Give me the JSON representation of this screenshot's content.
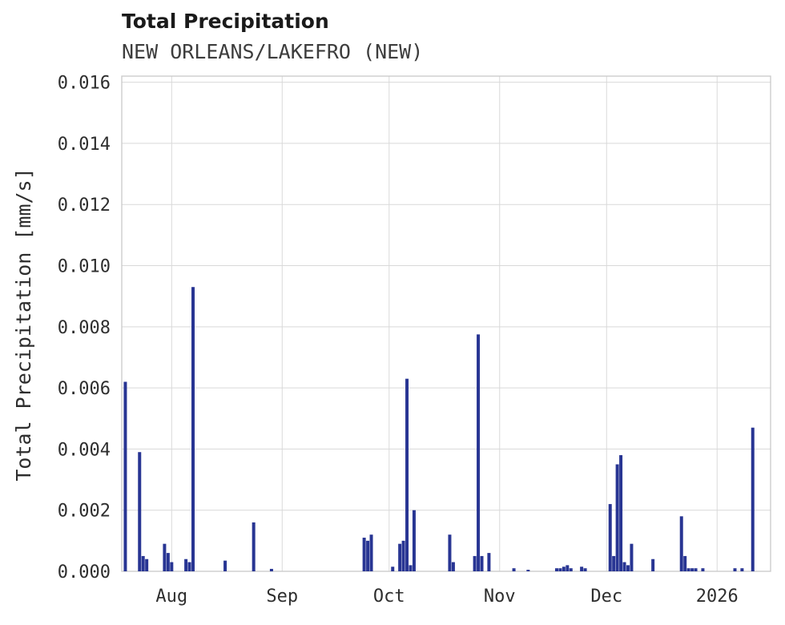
{
  "header": {
    "title": "Total Precipitation",
    "subtitle": "NEW ORLEANS/LAKEFRO (NEW)"
  },
  "chart_data": {
    "type": "bar",
    "title": "Total Precipitation",
    "subtitle": "NEW ORLEANS/LAKEFRO (NEW)",
    "xlabel": "",
    "ylabel": "Total Precipitation [mm/s]",
    "ylim": [
      0,
      0.0162
    ],
    "yticks": [
      0.0,
      0.002,
      0.004,
      0.006,
      0.008,
      0.01,
      0.012,
      0.014,
      0.016
    ],
    "ytick_labels": [
      "0.000",
      "0.002",
      "0.004",
      "0.006",
      "0.008",
      "0.010",
      "0.012",
      "0.014",
      "0.016"
    ],
    "x_range": [
      "2025-07-18",
      "2026-01-16"
    ],
    "xticks": [
      "2025-08-01",
      "2025-09-01",
      "2025-10-01",
      "2025-11-01",
      "2025-12-01",
      "2026-01-01"
    ],
    "xtick_labels": [
      "Aug",
      "Sep",
      "Oct",
      "Nov",
      "Dec",
      "2026"
    ],
    "grid": true,
    "legend": "none",
    "bar_color": "#283593",
    "grid_color": "#d9d9d9",
    "border_color": "#c9c9c9",
    "points": [
      {
        "date": "2025-07-19",
        "value": 0.0062
      },
      {
        "date": "2025-07-23",
        "value": 0.0039
      },
      {
        "date": "2025-07-24",
        "value": 0.0005
      },
      {
        "date": "2025-07-25",
        "value": 0.0004
      },
      {
        "date": "2025-07-30",
        "value": 0.0009
      },
      {
        "date": "2025-07-31",
        "value": 0.0006
      },
      {
        "date": "2025-08-01",
        "value": 0.0003
      },
      {
        "date": "2025-08-05",
        "value": 0.0004
      },
      {
        "date": "2025-08-06",
        "value": 0.0003
      },
      {
        "date": "2025-08-07",
        "value": 0.0093
      },
      {
        "date": "2025-08-16",
        "value": 0.00035
      },
      {
        "date": "2025-08-24",
        "value": 0.0016
      },
      {
        "date": "2025-08-29",
        "value": 8e-05
      },
      {
        "date": "2025-09-24",
        "value": 0.0011
      },
      {
        "date": "2025-09-25",
        "value": 0.001
      },
      {
        "date": "2025-09-26",
        "value": 0.0012
      },
      {
        "date": "2025-10-02",
        "value": 0.00015
      },
      {
        "date": "2025-10-04",
        "value": 0.0009
      },
      {
        "date": "2025-10-05",
        "value": 0.001
      },
      {
        "date": "2025-10-06",
        "value": 0.0063
      },
      {
        "date": "2025-10-07",
        "value": 0.0002
      },
      {
        "date": "2025-10-08",
        "value": 0.002
      },
      {
        "date": "2025-10-18",
        "value": 0.0012
      },
      {
        "date": "2025-10-19",
        "value": 0.0003
      },
      {
        "date": "2025-10-25",
        "value": 0.0005
      },
      {
        "date": "2025-10-26",
        "value": 0.00775
      },
      {
        "date": "2025-10-27",
        "value": 0.0005
      },
      {
        "date": "2025-10-29",
        "value": 0.0006
      },
      {
        "date": "2025-11-05",
        "value": 0.0001
      },
      {
        "date": "2025-11-09",
        "value": 5e-05
      },
      {
        "date": "2025-11-17",
        "value": 0.0001
      },
      {
        "date": "2025-11-18",
        "value": 0.0001
      },
      {
        "date": "2025-11-19",
        "value": 0.00015
      },
      {
        "date": "2025-11-20",
        "value": 0.0002
      },
      {
        "date": "2025-11-21",
        "value": 0.0001
      },
      {
        "date": "2025-11-24",
        "value": 0.00015
      },
      {
        "date": "2025-11-25",
        "value": 0.0001
      },
      {
        "date": "2025-12-02",
        "value": 0.0022
      },
      {
        "date": "2025-12-03",
        "value": 0.0005
      },
      {
        "date": "2025-12-04",
        "value": 0.0035
      },
      {
        "date": "2025-12-05",
        "value": 0.0038
      },
      {
        "date": "2025-12-06",
        "value": 0.0003
      },
      {
        "date": "2025-12-07",
        "value": 0.0002
      },
      {
        "date": "2025-12-08",
        "value": 0.0009
      },
      {
        "date": "2025-12-14",
        "value": 0.0004
      },
      {
        "date": "2025-12-22",
        "value": 0.0018
      },
      {
        "date": "2025-12-23",
        "value": 0.0005
      },
      {
        "date": "2025-12-24",
        "value": 0.0001
      },
      {
        "date": "2025-12-25",
        "value": 0.0001
      },
      {
        "date": "2025-12-26",
        "value": 0.0001
      },
      {
        "date": "2025-12-28",
        "value": 0.0001
      },
      {
        "date": "2026-01-06",
        "value": 0.0001
      },
      {
        "date": "2026-01-08",
        "value": 0.0001
      },
      {
        "date": "2026-01-11",
        "value": 0.0047
      }
    ]
  }
}
